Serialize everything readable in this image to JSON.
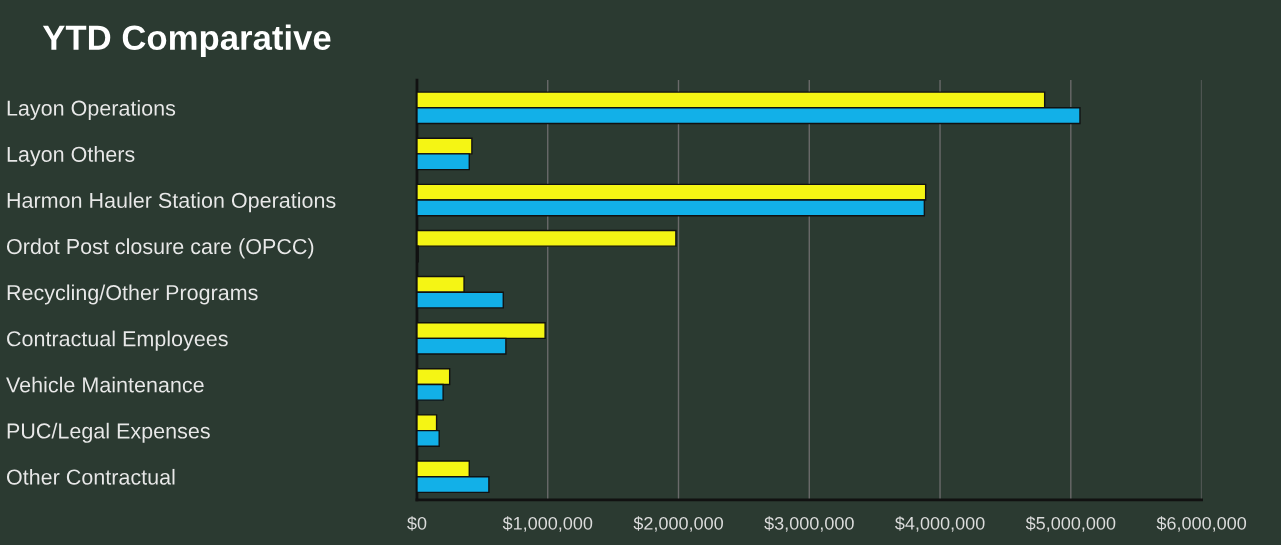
{
  "chart_data": {
    "type": "bar",
    "orientation": "horizontal",
    "title": "YTD Comparative",
    "categories": [
      "Layon Operations",
      "Layon Others",
      "Harmon Hauler Station Operations",
      "Ordot Post closure care (OPCC)",
      "Recycling/Other Programs",
      "Contractual Employees",
      "Vehicle Maintenance",
      "PUC/Legal Expenses",
      "Other Contractual"
    ],
    "series": [
      {
        "color": "#f5f514",
        "values": [
          4800000,
          420000,
          3890000,
          1980000,
          360000,
          980000,
          250000,
          150000,
          400000
        ]
      },
      {
        "color": "#12b0e8",
        "values": [
          5070000,
          400000,
          3880000,
          10000,
          660000,
          680000,
          200000,
          170000,
          550000
        ]
      }
    ],
    "xlim": [
      0,
      6000000
    ],
    "xticks": [
      {
        "value": 0,
        "label": "$0"
      },
      {
        "value": 1000000,
        "label": "$1,000,000"
      },
      {
        "value": 2000000,
        "label": "$2,000,000"
      },
      {
        "value": 3000000,
        "label": "$3,000,000"
      },
      {
        "value": 4000000,
        "label": "$4,000,000"
      },
      {
        "value": 5000000,
        "label": "$5,000,000"
      },
      {
        "value": 6000000,
        "label": "$6,000,000"
      }
    ],
    "grid": "x",
    "legend": false
  }
}
